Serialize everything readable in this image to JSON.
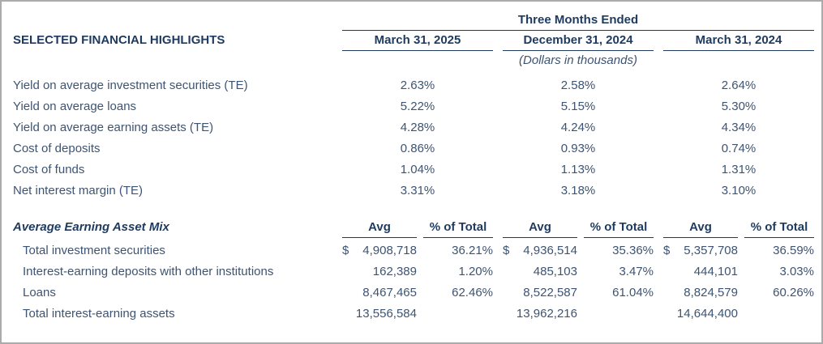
{
  "table": {
    "title": "SELECTED FINANCIAL HIGHLIGHTS",
    "period_header": "Three Months Ended",
    "units_note": "(Dollars in thousands)",
    "columns": [
      "March 31, 2025",
      "December 31, 2024",
      "March 31, 2024"
    ],
    "yield_rows": [
      {
        "label": "Yield on average investment securities (TE)",
        "values": [
          "2.63%",
          "2.58%",
          "2.64%"
        ]
      },
      {
        "label": "Yield on average loans",
        "values": [
          "5.22%",
          "5.15%",
          "5.30%"
        ]
      },
      {
        "label": "Yield on average earning assets (TE)",
        "values": [
          "4.28%",
          "4.24%",
          "4.34%"
        ]
      },
      {
        "label": "Cost of deposits",
        "values": [
          "0.86%",
          "0.93%",
          "0.74%"
        ]
      },
      {
        "label": "Cost of funds",
        "values": [
          "1.04%",
          "1.13%",
          "1.31%"
        ]
      },
      {
        "label": "Net interest margin (TE)",
        "values": [
          "3.31%",
          "3.18%",
          "3.10%"
        ]
      }
    ],
    "asset_mix": {
      "section_title": "Average Earning Asset Mix",
      "avg_header": "Avg",
      "pct_header": "% of Total",
      "rows": [
        {
          "label": "Total investment securities",
          "dollar1": "$",
          "avg1": "4,908,718",
          "pct1": "36.21%",
          "dollar2": "$",
          "avg2": "4,936,514",
          "pct2": "35.36%",
          "dollar3": "$",
          "avg3": "5,357,708",
          "pct3": "36.59%"
        },
        {
          "label": "Interest-earning deposits with other institutions",
          "dollar1": "",
          "avg1": "162,389",
          "pct1": "1.20%",
          "dollar2": "",
          "avg2": "485,103",
          "pct2": "3.47%",
          "dollar3": "",
          "avg3": "444,101",
          "pct3": "3.03%"
        },
        {
          "label": "Loans",
          "dollar1": "",
          "avg1": "8,467,465",
          "pct1": "62.46%",
          "dollar2": "",
          "avg2": "8,522,587",
          "pct2": "61.04%",
          "dollar3": "",
          "avg3": "8,824,579",
          "pct3": "60.26%"
        },
        {
          "label": "Total interest-earning assets",
          "dollar1": "",
          "avg1": "13,556,584",
          "pct1": "",
          "dollar2": "",
          "avg2": "13,962,216",
          "pct2": "",
          "dollar3": "",
          "avg3": "14,644,400",
          "pct3": ""
        }
      ]
    },
    "colors": {
      "header_navy": "#1f3a5f",
      "body_navy": "#3d5472",
      "border_gray": "#ababab"
    }
  }
}
